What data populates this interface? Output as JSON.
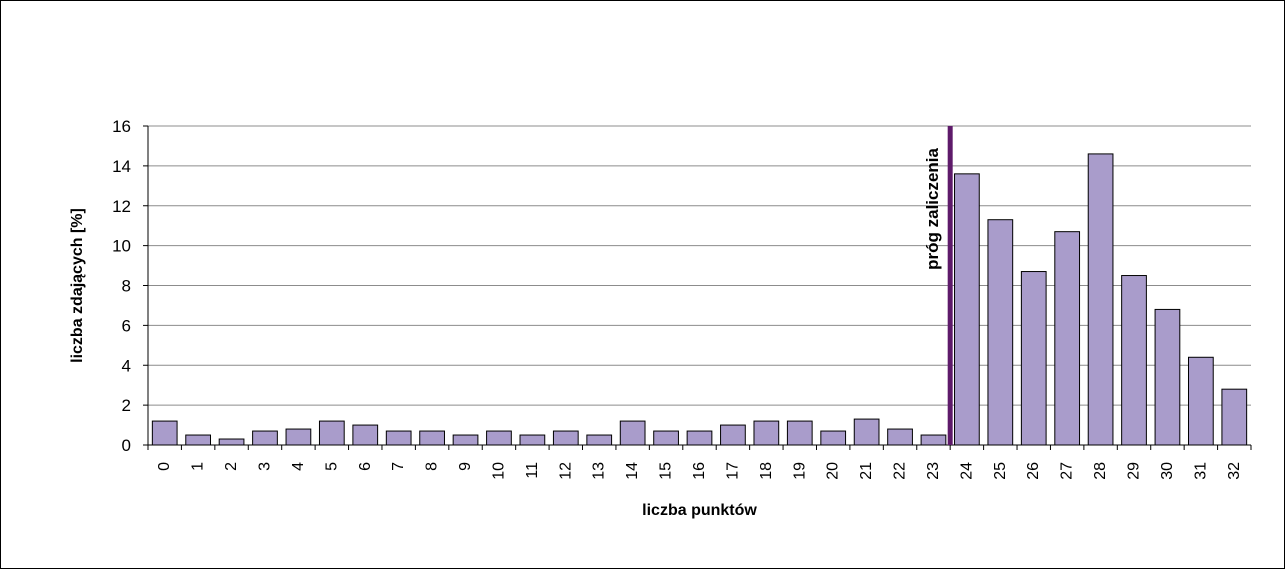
{
  "chart_data": {
    "type": "bar",
    "xlabel": "liczba punktów",
    "ylabel": "liczba zdających [%]",
    "ylim": [
      0,
      16
    ],
    "yticks": [
      "0",
      "2",
      "4",
      "6",
      "8",
      "10",
      "12",
      "14",
      "16"
    ],
    "grid": true,
    "categories": [
      "0",
      "1",
      "2",
      "3",
      "4",
      "5",
      "6",
      "7",
      "8",
      "9",
      "10",
      "11",
      "12",
      "13",
      "14",
      "15",
      "16",
      "17",
      "18",
      "19",
      "20",
      "21",
      "22",
      "23",
      "24",
      "25",
      "26",
      "27",
      "28",
      "29",
      "30",
      "31",
      "32"
    ],
    "values": [
      1.2,
      0.5,
      0.3,
      0.7,
      0.8,
      1.2,
      1.0,
      0.7,
      0.7,
      0.5,
      0.7,
      0.5,
      0.7,
      0.5,
      1.2,
      0.7,
      0.7,
      1.0,
      1.2,
      1.2,
      0.7,
      1.3,
      0.8,
      0.5,
      13.6,
      11.3,
      8.7,
      10.7,
      14.6,
      8.5,
      6.8,
      4.4,
      2.8
    ],
    "bar_color": "#a99ccb",
    "threshold": {
      "label": "próg zaliczenia",
      "before_category": "24",
      "color": "#5e1a6a"
    }
  }
}
